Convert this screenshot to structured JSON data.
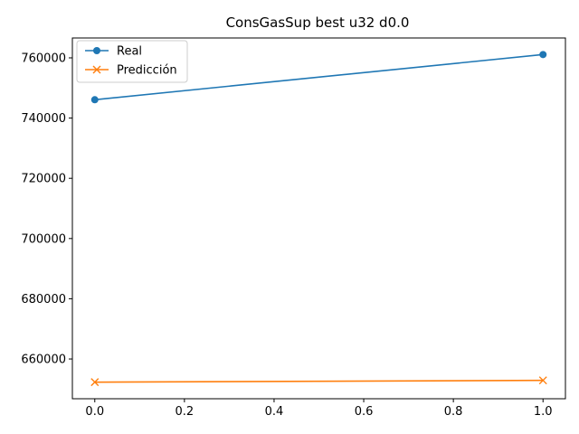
{
  "chart_data": {
    "type": "line",
    "title": "ConsGasSup best u32 d0.0",
    "xlabel": "",
    "ylabel": "",
    "x": [
      0.0,
      1.0
    ],
    "xlim": [
      -0.05,
      1.05
    ],
    "ylim": [
      646800,
      766600
    ],
    "xticks": [
      0.0,
      0.2,
      0.4,
      0.6,
      0.8,
      1.0
    ],
    "xtick_labels": [
      "0.0",
      "0.2",
      "0.4",
      "0.6",
      "0.8",
      "1.0"
    ],
    "yticks": [
      660000,
      680000,
      700000,
      720000,
      740000,
      760000
    ],
    "ytick_labels": [
      "660000",
      "680000",
      "700000",
      "720000",
      "740000",
      "760000"
    ],
    "grid": false,
    "legend_position": "top-left",
    "series": [
      {
        "name": "Real",
        "values": [
          746100,
          761100
        ],
        "color": "#1f77b4",
        "marker": "circle"
      },
      {
        "name": "Predicción",
        "values": [
          652300,
          652900
        ],
        "color": "#ff7f0e",
        "marker": "x"
      }
    ]
  }
}
